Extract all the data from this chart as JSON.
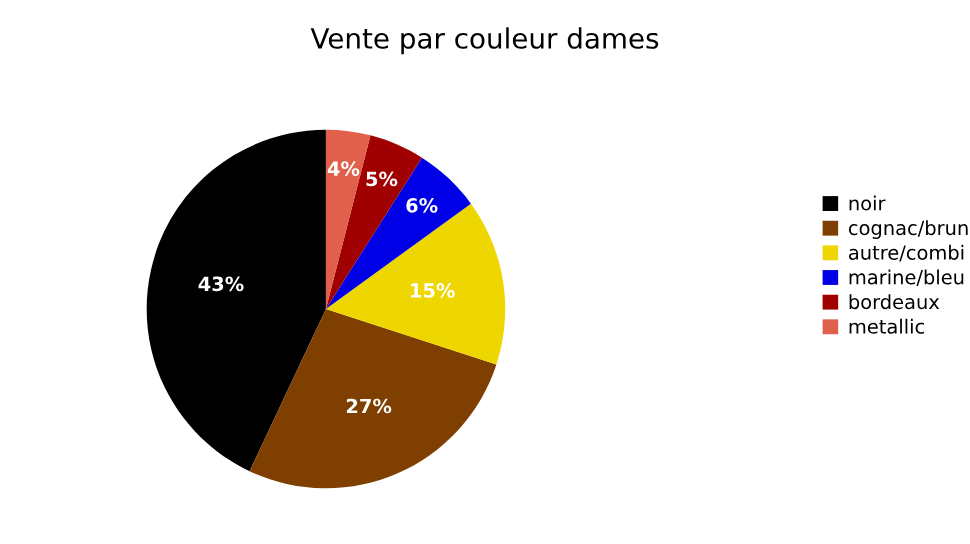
{
  "chart_data": {
    "type": "pie",
    "title": "Vente par couleur dames",
    "categories": [
      "noir",
      "cognac/brun",
      "autre/combi",
      "marine/bleu",
      "bordeaux",
      "metallic"
    ],
    "values": [
      43,
      27,
      15,
      6,
      5,
      4
    ],
    "colors": [
      "#000000",
      "#7f3f00",
      "#eed600",
      "#0000e6",
      "#a00000",
      "#e0604c"
    ],
    "value_labels": [
      "43%",
      "27%",
      "15%",
      "6%",
      "5%",
      "4%"
    ],
    "legend": "right"
  }
}
